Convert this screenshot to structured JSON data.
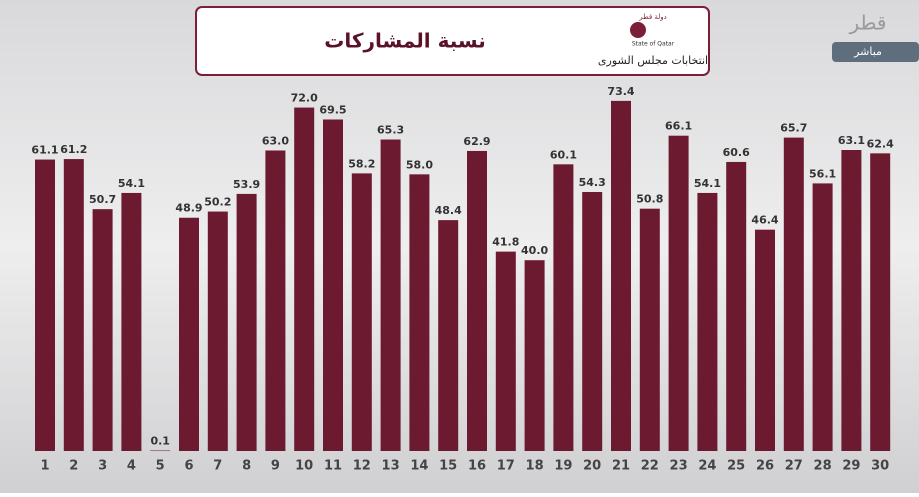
{
  "chart_data": {
    "type": "bar",
    "title": "نسبة المشاركات",
    "logo_text": "انتخابات مجلس الشورى",
    "logo_top": "دولة قطر",
    "logo_en": "State of Qatar",
    "channel": "قطر",
    "channel_tag": "مباشر",
    "categories": [
      "1",
      "2",
      "3",
      "4",
      "5",
      "6",
      "7",
      "8",
      "9",
      "10",
      "11",
      "12",
      "13",
      "14",
      "15",
      "16",
      "17",
      "18",
      "19",
      "20",
      "21",
      "22",
      "23",
      "24",
      "25",
      "26",
      "27",
      "28",
      "29",
      "30"
    ],
    "values": [
      61.1,
      61.2,
      50.7,
      54.1,
      0.1,
      48.9,
      50.2,
      53.9,
      63.0,
      72.0,
      69.5,
      58.2,
      65.3,
      58.0,
      48.4,
      62.9,
      41.8,
      40.0,
      60.1,
      54.3,
      73.4,
      50.8,
      66.1,
      54.1,
      60.6,
      46.4,
      65.7,
      56.1,
      63.1,
      62.4
    ],
    "value_labels": [
      "61.1",
      "61.2",
      "50.7",
      "54.1",
      "0.1",
      "48.9",
      "50.2",
      "53.9",
      "63.0",
      "72.0",
      "69.5",
      "58.2",
      "65.3",
      "58.0",
      "48.4",
      "62.9",
      "41.8",
      "40.0",
      "60.1",
      "54.3",
      "73.4",
      "50.8",
      "66.1",
      "54.1",
      "60.6",
      "46.4",
      "65.7",
      "56.1",
      "63.1",
      "62.4"
    ],
    "color": "#6b1a30"
  }
}
